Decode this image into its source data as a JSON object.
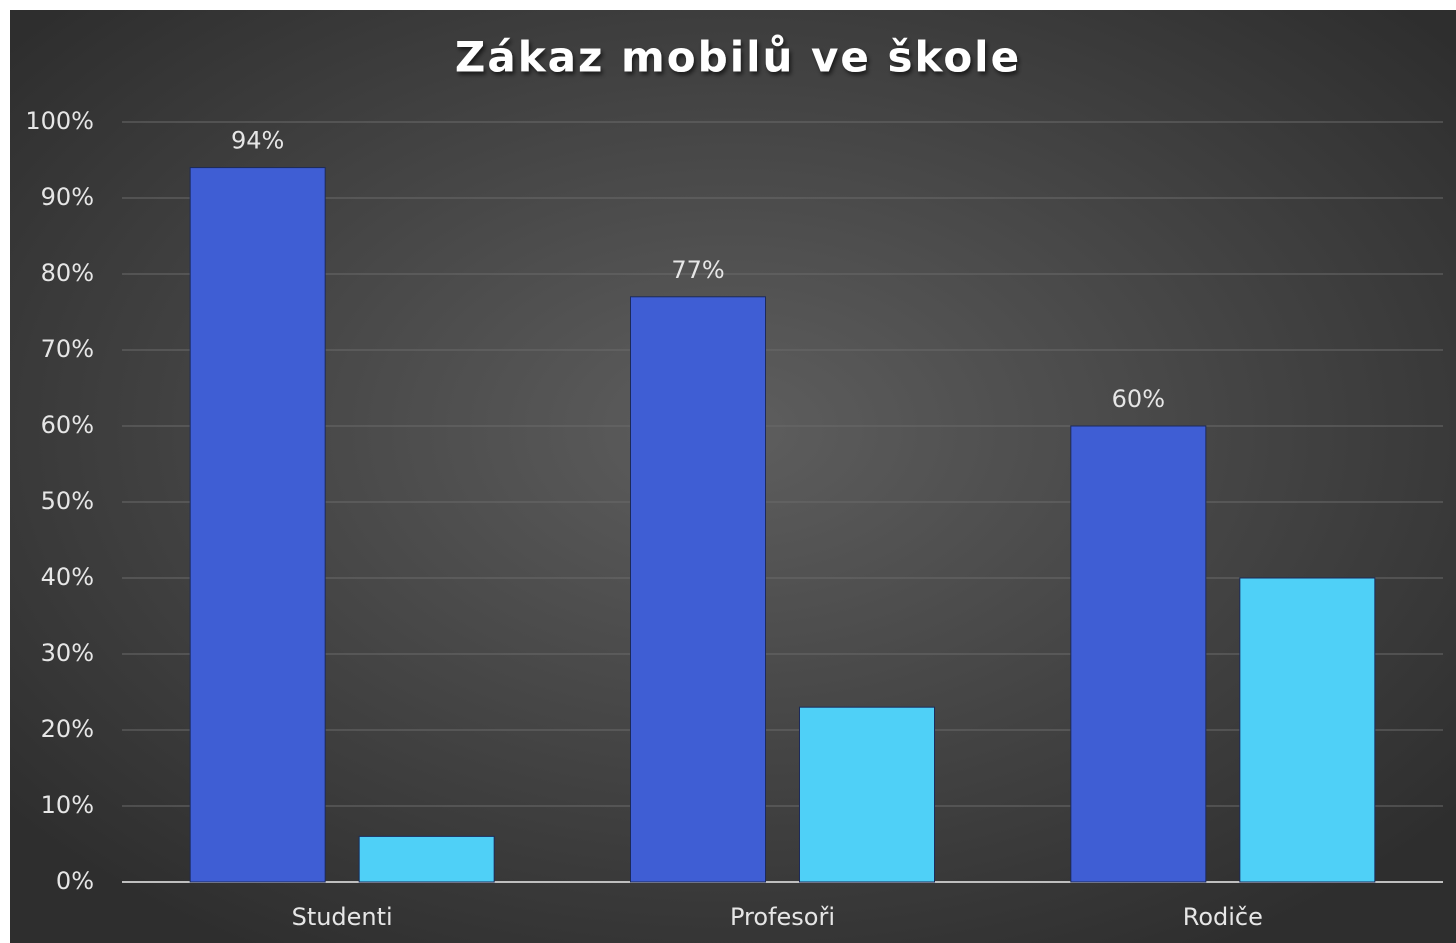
{
  "chart_data": {
    "type": "bar",
    "title": "Zákaz mobilů ve škole",
    "categories": [
      "Studenti",
      "Profesoři",
      "Rodiče"
    ],
    "series": [
      {
        "color": "#3f5ed4",
        "values": [
          94,
          77,
          60
        ],
        "value_labels": [
          "94%",
          "77%",
          "60%"
        ]
      },
      {
        "color": "#4fd0f7",
        "values": [
          6,
          23,
          40
        ]
      }
    ],
    "ylim": [
      0,
      100
    ],
    "yticks": [
      {
        "value": 0,
        "label": "0%"
      },
      {
        "value": 10,
        "label": "10%"
      },
      {
        "value": 20,
        "label": "20%"
      },
      {
        "value": 30,
        "label": "30%"
      },
      {
        "value": 40,
        "label": "40%"
      },
      {
        "value": 50,
        "label": "50%"
      },
      {
        "value": 60,
        "label": "60%"
      },
      {
        "value": 70,
        "label": "70%"
      },
      {
        "value": 80,
        "label": "80%"
      },
      {
        "value": 90,
        "label": "90%"
      },
      {
        "value": 100,
        "label": "100%"
      }
    ],
    "grid": true
  }
}
